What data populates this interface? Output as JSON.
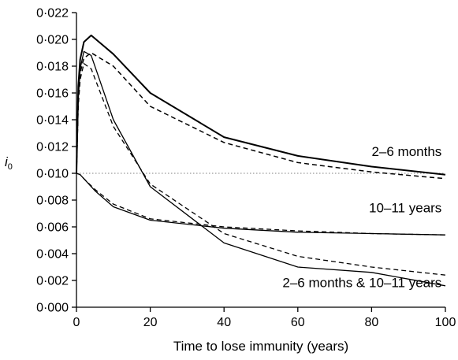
{
  "chart_data": {
    "type": "line",
    "title": "",
    "xlabel": "Time to lose immunity (years)",
    "ylabel_main": "i",
    "ylabel_sub": "0",
    "xlim": [
      0,
      100
    ],
    "ylim": [
      0.0,
      0.022
    ],
    "x_ticks": [
      0,
      20,
      40,
      60,
      80,
      100
    ],
    "x_tick_labels": [
      "0",
      "20",
      "40",
      "60",
      "80",
      "100"
    ],
    "y_ticks": [
      0.0,
      0.002,
      0.004,
      0.006,
      0.008,
      0.01,
      0.012,
      0.014,
      0.016,
      0.018,
      0.02,
      0.022
    ],
    "y_tick_labels": [
      "0·000",
      "0·002",
      "0·004",
      "0·006",
      "0·008",
      "0·010",
      "0·012",
      "0·014",
      "0·016",
      "0·018",
      "0·020",
      "0·022"
    ],
    "reference_line": {
      "y": 0.01,
      "style": "dotted",
      "color": "#999999"
    },
    "annotations": [
      {
        "text": "2–6 months",
        "x": 99,
        "y": 0.0113
      },
      {
        "text": "10–11 years",
        "x": 99,
        "y": 0.0071
      },
      {
        "text": "2–6 months & 10–11 years",
        "x": 99,
        "y": 0.0015
      }
    ],
    "series": [
      {
        "style": "solid",
        "width": 2.0,
        "x": [
          0,
          0.5,
          1,
          2,
          4,
          10,
          20,
          40,
          60,
          80,
          100
        ],
        "y": [
          0.01,
          0.0165,
          0.0185,
          0.0198,
          0.0203,
          0.0189,
          0.016,
          0.0127,
          0.0113,
          0.0105,
          0.0099
        ]
      },
      {
        "style": "dashed",
        "width": 1.5,
        "x": [
          0,
          0.5,
          1,
          2,
          4,
          10,
          20,
          40,
          60,
          80,
          100
        ],
        "y": [
          0.01,
          0.0155,
          0.0175,
          0.0186,
          0.019,
          0.018,
          0.015,
          0.0123,
          0.0108,
          0.0101,
          0.0096
        ]
      },
      {
        "style": "solid",
        "width": 1.3,
        "x": [
          0,
          0.5,
          1,
          2,
          4,
          10,
          20,
          40,
          60,
          80,
          100
        ],
        "y": [
          0.01,
          0.0155,
          0.0178,
          0.0191,
          0.0188,
          0.014,
          0.009,
          0.0048,
          0.003,
          0.0026,
          0.0016
        ]
      },
      {
        "style": "dashed",
        "width": 1.3,
        "x": [
          0,
          0.5,
          1,
          2,
          4,
          10,
          20,
          40,
          60,
          80,
          100
        ],
        "y": [
          0.01,
          0.015,
          0.017,
          0.0182,
          0.0178,
          0.0135,
          0.0092,
          0.0055,
          0.0038,
          0.003,
          0.0024
        ]
      },
      {
        "style": "solid",
        "width": 1.3,
        "x": [
          0,
          1,
          2,
          5,
          10,
          20,
          40,
          60,
          80,
          100
        ],
        "y": [
          0.01,
          0.0099,
          0.0096,
          0.0087,
          0.0075,
          0.0065,
          0.0059,
          0.0056,
          0.0055,
          0.0054
        ]
      },
      {
        "style": "dashed",
        "width": 1.3,
        "x": [
          0,
          1,
          2,
          5,
          10,
          20,
          40,
          60,
          80,
          100
        ],
        "y": [
          0.01,
          0.0099,
          0.0096,
          0.0088,
          0.0077,
          0.0066,
          0.006,
          0.0057,
          0.0055,
          0.0054
        ]
      }
    ]
  }
}
